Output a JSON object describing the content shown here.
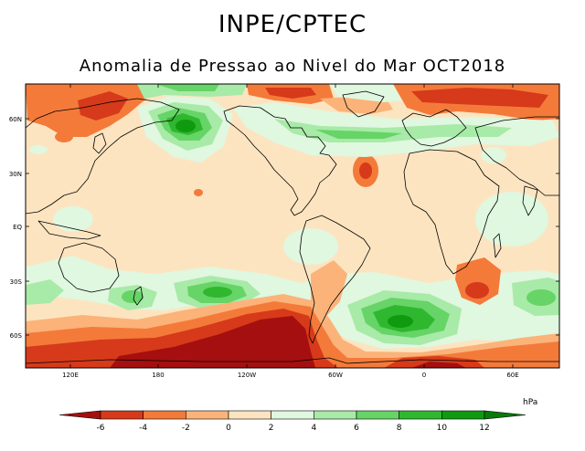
{
  "title": "INPE/CPTEC",
  "subtitle": "Anomalia de Pressao ao Nivel do Mar OCT2018",
  "map": {
    "lat_labels": [
      "60N",
      "30N",
      "EQ",
      "30S",
      "60S"
    ],
    "lon_labels": [
      "120E",
      "180",
      "120W",
      "60W",
      "0",
      "60E"
    ],
    "colors": {
      "land_fill": "#fde4c0",
      "ocean_neutral": "#fde4c0",
      "coast": "#000000"
    }
  },
  "colorbar": {
    "unit": "hPa",
    "labels": [
      "-6",
      "-4",
      "-2",
      "0",
      "2",
      "4",
      "6",
      "8",
      "10",
      "12"
    ],
    "colors": [
      "#a50f0f",
      "#d63a1a",
      "#f47a3a",
      "#fbb37a",
      "#fde4c0",
      "#e0f7e0",
      "#a8eaa8",
      "#66d466",
      "#2fb82f",
      "#0f9a0f",
      "#0a7a0a"
    ]
  }
}
